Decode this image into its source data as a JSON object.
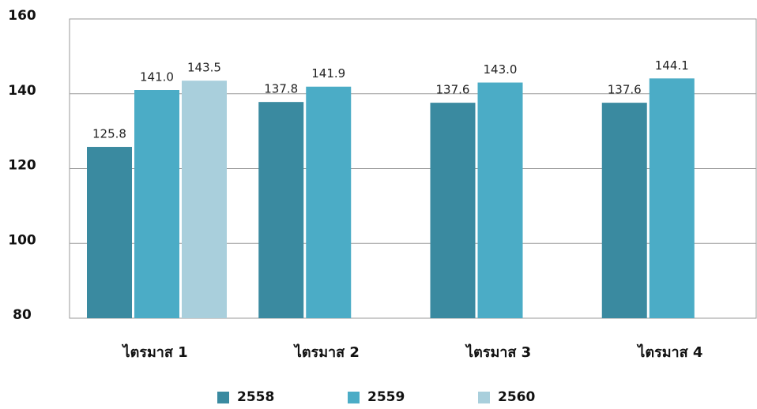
{
  "chart_data": {
    "type": "bar",
    "categories": [
      "ไตรมาส 1",
      "ไตรมาส 2",
      "ไตรมาส 3",
      "ไตรมาส 4"
    ],
    "series": [
      {
        "name": "2558",
        "color": "#3a8aa0",
        "values": [
          125.8,
          137.8,
          137.6,
          137.6
        ],
        "value_labels": [
          "125.8",
          "137.8",
          "137.6",
          "137.6"
        ]
      },
      {
        "name": "2559",
        "color": "#4bacc6",
        "values": [
          141.0,
          141.9,
          143.0,
          144.1
        ],
        "value_labels": [
          "141.0",
          "141.9",
          "143.0",
          "144.1"
        ]
      },
      {
        "name": "2560",
        "color": "#a9cfdc",
        "values": [
          143.5,
          null,
          null,
          null
        ],
        "value_labels": [
          "143.5",
          null,
          null,
          null
        ]
      }
    ],
    "ylim": [
      80,
      160
    ],
    "yticks": [
      80,
      100,
      120,
      140,
      160
    ],
    "grid": true,
    "legend": "bottom"
  }
}
